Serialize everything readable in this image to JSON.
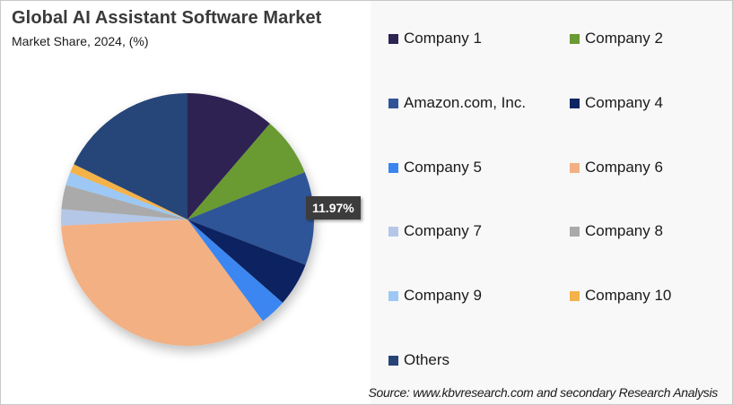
{
  "chart_data": {
    "type": "pie",
    "title": "Global AI Assistant Software Market",
    "subtitle": "Market Share, 2024, (%)",
    "values_note": "Only Amazon.com, Inc. (11.97%) is labeled on the chart; all other shares are visual estimates from slice angles.",
    "categories": [
      "Company 1",
      "Company 2",
      "Amazon.com, Inc.",
      "Company 4",
      "Company 5",
      "Company 6",
      "Company 7",
      "Company 8",
      "Company 9",
      "Company 10",
      "Others"
    ],
    "values": [
      11.3,
      7.6,
      11.97,
      5.6,
      3.4,
      34.4,
      2.1,
      3.1,
      1.7,
      1.1,
      17.8
    ],
    "colors": [
      "#2e2452",
      "#6a9a32",
      "#2f5597",
      "#0e2461",
      "#3a86f0",
      "#f2b083",
      "#b4c7e7",
      "#aaaaaa",
      "#9dc8f5",
      "#f4b24a",
      "#264478"
    ],
    "data_labels": [
      {
        "category": "Amazon.com, Inc.",
        "text": "11.97%"
      }
    ],
    "start_angle_deg": 0,
    "direction": "clockwise",
    "legend_position": "right"
  },
  "header": {
    "title": "Global AI Assistant Software Market",
    "subtitle": "Market Share, 2024, (%)"
  },
  "legend": {
    "items": [
      {
        "label": "Company 1",
        "color": "#2e2452"
      },
      {
        "label": "Company 2",
        "color": "#6a9a32"
      },
      {
        "label": "Amazon.com, Inc.",
        "color": "#2f5597"
      },
      {
        "label": "Company 4",
        "color": "#0e2461"
      },
      {
        "label": "Company 5",
        "color": "#3a86f0"
      },
      {
        "label": "Company 6",
        "color": "#f2b083"
      },
      {
        "label": "Company 7",
        "color": "#b4c7e7"
      },
      {
        "label": "Company 8",
        "color": "#aaaaaa"
      },
      {
        "label": "Company 9",
        "color": "#9dc8f5"
      },
      {
        "label": "Company 10",
        "color": "#f4b24a"
      },
      {
        "label": "Others",
        "color": "#264478"
      }
    ]
  },
  "data_label": {
    "text": "11.97%"
  },
  "footer": {
    "source": "Source: www.kbvresearch.com and secondary Research Analysis"
  }
}
